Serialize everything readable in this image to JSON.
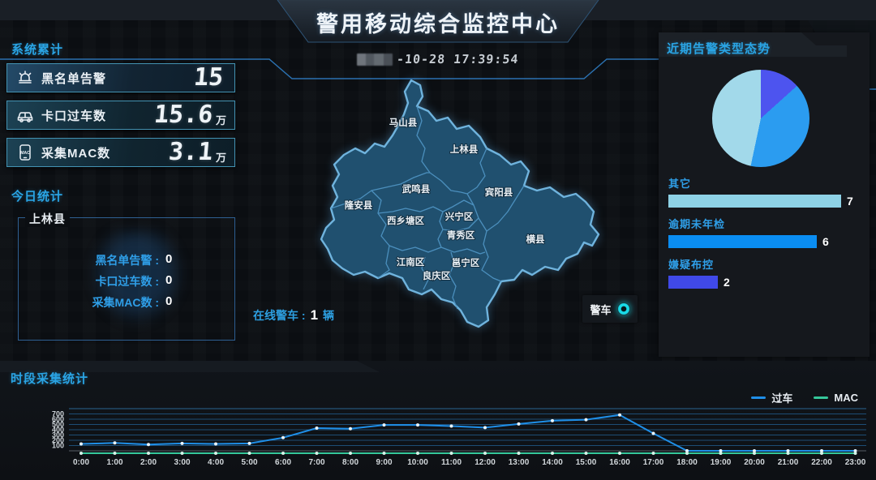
{
  "header": {
    "title": "警用移动综合监控中心",
    "timestamp_suffix": "-10-28 17:39:54"
  },
  "left": {
    "system_title": "系统累计",
    "stats": [
      {
        "icon": "siren-icon",
        "label": "黑名单告警",
        "value": "15",
        "unit": ""
      },
      {
        "icon": "car-icon",
        "label": "卡口过车数",
        "value": "15.6",
        "unit": "万"
      },
      {
        "icon": "phone-mac-icon",
        "label": "采集MAC数",
        "value": "3.1",
        "unit": "万"
      }
    ],
    "today_title": "今日统计",
    "today_region": "上林县",
    "today_rows": [
      {
        "label": "黑名单告警 :",
        "value": "0"
      },
      {
        "label": "卡口过车数 :",
        "value": "0"
      },
      {
        "label": "采集MAC数 :",
        "value": "0"
      }
    ]
  },
  "map": {
    "districts": [
      "马山县",
      "上林县",
      "武鸣县",
      "宾阳县",
      "隆安县",
      "西乡塘区",
      "兴宁区",
      "青秀区",
      "横县",
      "江南区",
      "邕宁区",
      "良庆区"
    ],
    "online_label": "在线警车 :",
    "online_value": "1",
    "online_unit": "辆",
    "vehicle_legend": "警车"
  },
  "right_panel": {
    "title": "近期告警类型态势"
  },
  "bottom_panel": {
    "title": "时段采集统计"
  },
  "accent_colors": {
    "panel_title": "#2aa4e4",
    "map_stroke": "#6fb3dd",
    "ring": "#19dbe8"
  },
  "chart_data": [
    {
      "type": "pie",
      "title": "近期告警类型态势",
      "slices": [
        {
          "label": "嫌疑布控",
          "value": 2,
          "color": "#4d54ef"
        },
        {
          "label": "逾期未年检",
          "value": 6,
          "color": "#2b9cf0"
        },
        {
          "label": "其它",
          "value": 7,
          "color": "#a2d9ea"
        }
      ]
    },
    {
      "type": "bar",
      "orientation": "horizontal",
      "categories": [
        "其它",
        "逾期未年检",
        "嫌疑布控"
      ],
      "values": [
        7,
        6,
        2
      ],
      "colors": [
        "#8ed2e6",
        "#0a8df2",
        "#4049e8"
      ],
      "xlim": [
        0,
        7
      ]
    },
    {
      "type": "line",
      "title": "时段采集统计",
      "x": [
        "0:00",
        "1:00",
        "2:00",
        "3:00",
        "4:00",
        "5:00",
        "6:00",
        "7:00",
        "8:00",
        "9:00",
        "10:00",
        "11:00",
        "12:00",
        "13:00",
        "14:00",
        "15:00",
        "16:00",
        "17:00",
        "18:00",
        "19:00",
        "20:00",
        "21:00",
        "22:00",
        "23:00"
      ],
      "ylim": [
        0,
        800
      ],
      "yticks": [
        100,
        200,
        300,
        400,
        500,
        600,
        700
      ],
      "grid": true,
      "legend_position": "top-right",
      "series": [
        {
          "name": "过车",
          "color": "#1f8fe8",
          "dot": "#e8f4fc",
          "values": [
            130,
            150,
            120,
            140,
            130,
            140,
            250,
            430,
            420,
            490,
            490,
            470,
            440,
            510,
            570,
            590,
            680,
            330,
            0,
            0,
            0,
            0,
            0,
            0
          ]
        },
        {
          "name": "MAC",
          "color": "#35c79a",
          "dot": "#d6f3e8",
          "values": [
            0,
            0,
            0,
            0,
            0,
            0,
            0,
            0,
            0,
            0,
            0,
            0,
            0,
            0,
            0,
            0,
            0,
            0,
            0,
            0,
            0,
            0,
            0,
            0
          ]
        }
      ]
    }
  ]
}
